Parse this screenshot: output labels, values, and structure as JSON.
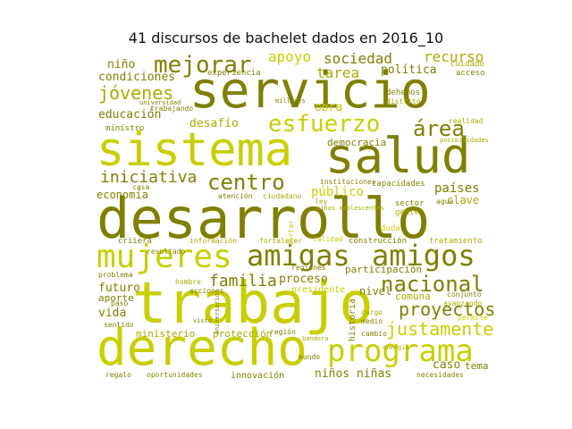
{
  "title": "41 discursos de bachelet dados en 2016_10",
  "colors": {
    "dark": "#7f8000",
    "mid": "#a8ab00",
    "light": "#c8cf00",
    "pale": "#d6d66a"
  },
  "words": {
    "servicio": "servicio",
    "sistema": "sistema",
    "salud": "salud",
    "desarrollo": "desarrollo",
    "trabajo": "trabajo",
    "derecho": "derecho",
    "mujeres": "mujeres",
    "amigas": "amigas",
    "amigos": "amigos",
    "programa": "programa",
    "mejorar": "mejorar",
    "esfuerzo": "esfuerzo",
    "centro": "centro",
    "area": "área",
    "nacional": "nacional",
    "jovenes": "jóvenes",
    "iniciativa": "iniciativa",
    "familia": "familia",
    "proyectos": "proyectos",
    "justamente": "justamente",
    "apoyo": "apoyo",
    "sociedad": "sociedad",
    "recurso": "recurso",
    "tarea": "tarea",
    "politica": "política",
    "condiciones": "condiciones",
    "nino": "niño",
    "educacion": "educación",
    "desafio": "desafío",
    "experiencia": "experiencia",
    "democracia": "democracia",
    "obra": "obra",
    "dehemos": "dehemos",
    "distrito": "distrito",
    "publico": "público",
    "paises": "países",
    "economia": "economía",
    "capacidades": "capacidades",
    "clave": "clave",
    "participacion": "participación",
    "proceso": "proceso",
    "presidente": "presidente",
    "nivel": "nivel",
    "comuna": "comuna",
    "futuro": "futuro",
    "vida": "vida",
    "aporte": "aporte",
    "ministerio": "ministerio",
    "proteccion": "protección",
    "region": "región",
    "historia": "historia",
    "caso": "caso",
    "tema": "tema",
    "ninos_ninas": "niños niñas",
    "innovacion": "innovación",
    "regalo": "regalo",
    "oportunidades": "oportunidades",
    "necesidades": "necesidades",
    "ministro": "ministro",
    "acceso": "acceso",
    "cuidado": "cuidado",
    "cambio": "cambio",
    "tratamiento": "tratamiento",
    "construccion": "construcción",
    "calidad": "calidad",
    "regiones": "regiones",
    "sector": "sector",
    "gente": "gente",
    "duda": "duda",
    "acciones": "acciones",
    "hombre": "hombre",
    "problema": "problema",
    "paso": "paso",
    "sentido": "sentido",
    "resultado": "resultado",
    "informacion": "información",
    "criiera": "criiera",
    "atencion": "atención",
    "ciudadano": "ciudadano",
    "instituciones": "instituciones",
    "cargo": "cargo",
    "conjunto": "conjunto",
    "avanzando": "avanzando",
    "fortalecer": "fortalecer",
    "trabajando": "trabajando",
    "universidad": "universidad",
    "agua": "agua",
    "casa": "casa",
    "ley": "ley",
    "permite": "permite",
    "ninas_adolescentes": "niñas adolescentes",
    "realidad": "realidad",
    "posibilidades": "posibilidades",
    "millones": "millones",
    "mundo": "mundo",
    "energia": "energía",
    "visto": "visto",
    "bandera": "bandera",
    "medio": "medio",
    "cortar": "cortar",
    "aniversario": "aniversario"
  }
}
